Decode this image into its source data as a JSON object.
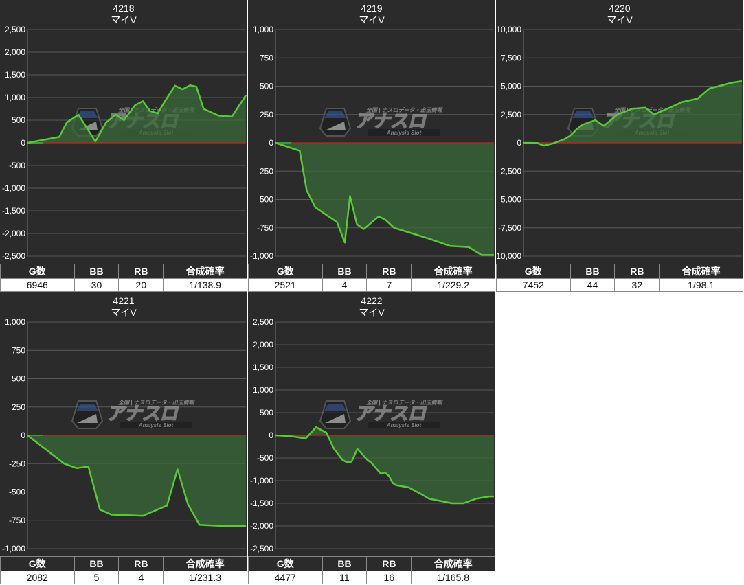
{
  "stats_headers": [
    "G数",
    "BB",
    "RB",
    "合成確率"
  ],
  "watermark": {
    "main": "アナスロ",
    "top": "全国 | ナスロデータ・出玉情報",
    "sub": "Analysis Slot"
  },
  "colors": {
    "background": "#2b2b2b",
    "grid": "#5a5a5a",
    "zero_line": "#cc2222",
    "series": "#55cc33",
    "fill": "#3a6a3a"
  },
  "panels": [
    {
      "id": "4218",
      "title": "4218",
      "subtitle": "マイV",
      "stats": {
        "games": "6946",
        "bb": "30",
        "rb": "20",
        "rate": "1/138.9"
      },
      "chart_data": {
        "type": "line",
        "ylim": [
          -2500,
          2500
        ],
        "yticks": [
          {
            "v": 2500,
            "label": "2,500"
          },
          {
            "v": 2000,
            "label": "2,000"
          },
          {
            "v": 1500,
            "label": "1,500"
          },
          {
            "v": 1000,
            "label": "1,000"
          },
          {
            "v": 500,
            "label": "500"
          },
          {
            "v": 0,
            "label": "0"
          },
          {
            "v": -500,
            "label": "-500"
          },
          {
            "v": -1000,
            "label": "-1,000"
          },
          {
            "v": -1500,
            "label": "-1,500"
          },
          {
            "v": -2000,
            "label": "-2,000"
          },
          {
            "v": -2500,
            "label": "-2,500"
          }
        ],
        "xmax": 6946,
        "x": [
          0,
          1010,
          1250,
          1620,
          2160,
          2500,
          2800,
          3070,
          3420,
          3670,
          3900,
          4140,
          4370,
          4690,
          4930,
          5170,
          5370,
          5600,
          5820,
          6080,
          6500,
          6946
        ],
        "y": [
          0,
          130,
          450,
          620,
          30,
          450,
          620,
          500,
          830,
          920,
          700,
          650,
          920,
          1260,
          1180,
          1270,
          1240,
          750,
          680,
          600,
          580,
          1050
        ]
      }
    },
    {
      "id": "4219",
      "title": "4219",
      "subtitle": "マイV",
      "stats": {
        "games": "2521",
        "bb": "4",
        "rb": "7",
        "rate": "1/229.2"
      },
      "chart_data": {
        "type": "line",
        "ylim": [
          -1000,
          1000
        ],
        "yticks": [
          {
            "v": 1000,
            "label": "1,000"
          },
          {
            "v": 750,
            "label": "750"
          },
          {
            "v": 500,
            "label": "500"
          },
          {
            "v": 250,
            "label": "250"
          },
          {
            "v": 0,
            "label": "0"
          },
          {
            "v": -250,
            "label": "-250"
          },
          {
            "v": -500,
            "label": "-500"
          },
          {
            "v": -750,
            "label": "-750"
          },
          {
            "v": -1000,
            "label": "-1,000"
          }
        ],
        "xmax": 2521,
        "x": [
          0,
          280,
          360,
          460,
          710,
          800,
          860,
          940,
          1020,
          1190,
          1270,
          1370,
          1580,
          1790,
          2010,
          2230,
          2380,
          2521
        ],
        "y": [
          0,
          -70,
          -420,
          -570,
          -700,
          -880,
          -470,
          -720,
          -760,
          -650,
          -680,
          -750,
          -800,
          -850,
          -910,
          -920,
          -990,
          -990
        ]
      }
    },
    {
      "id": "4220",
      "title": "4220",
      "subtitle": "マイV",
      "stats": {
        "games": "7452",
        "bb": "44",
        "rb": "32",
        "rate": "1/98.1"
      },
      "chart_data": {
        "type": "line",
        "ylim": [
          -10000,
          10000
        ],
        "yticks": [
          {
            "v": 10000,
            "label": "10,000"
          },
          {
            "v": 7500,
            "label": "7,500"
          },
          {
            "v": 5000,
            "label": "5,000"
          },
          {
            "v": 2500,
            "label": "2,500"
          },
          {
            "v": 0,
            "label": "0"
          },
          {
            "v": -2500,
            "label": "-2,500"
          },
          {
            "v": -5000,
            "label": "-5,000"
          },
          {
            "v": -7500,
            "label": "-7,500"
          },
          {
            "v": -10000,
            "label": "-10,000"
          }
        ],
        "xmax": 7452,
        "x": [
          0,
          460,
          700,
          1010,
          1380,
          1580,
          1860,
          2020,
          2450,
          2740,
          3210,
          3700,
          4160,
          4450,
          4990,
          5410,
          5940,
          6350,
          6660,
          7100,
          7452
        ],
        "y": [
          0,
          -20,
          -250,
          -50,
          300,
          600,
          1300,
          1600,
          2000,
          1500,
          2500,
          3000,
          3100,
          2500,
          3100,
          3600,
          3900,
          4800,
          5000,
          5300,
          5450
        ]
      }
    },
    {
      "id": "4221",
      "title": "4221",
      "subtitle": "マイV",
      "stats": {
        "games": "2082",
        "bb": "5",
        "rb": "4",
        "rate": "1/231.3"
      },
      "chart_data": {
        "type": "line",
        "ylim": [
          -1000,
          1000
        ],
        "yticks": [
          {
            "v": 1000,
            "label": "1,000"
          },
          {
            "v": 750,
            "label": "750"
          },
          {
            "v": 500,
            "label": "500"
          },
          {
            "v": 250,
            "label": "250"
          },
          {
            "v": 0,
            "label": "0"
          },
          {
            "v": -250,
            "label": "-250"
          },
          {
            "v": -500,
            "label": "-500"
          },
          {
            "v": -750,
            "label": "-750"
          },
          {
            "v": -1000,
            "label": "-1,000"
          }
        ],
        "xmax": 2082,
        "x": [
          0,
          350,
          470,
          580,
          690,
          800,
          1100,
          1330,
          1430,
          1530,
          1640,
          1860,
          2082
        ],
        "y": [
          0,
          -250,
          -290,
          -275,
          -655,
          -700,
          -710,
          -620,
          -300,
          -610,
          -790,
          -800,
          -800
        ]
      }
    },
    {
      "id": "4222",
      "title": "4222",
      "subtitle": "マイV",
      "stats": {
        "games": "4477",
        "bb": "11",
        "rb": "16",
        "rate": "1/165.8"
      },
      "chart_data": {
        "type": "line",
        "ylim": [
          -2500,
          2500
        ],
        "yticks": [
          {
            "v": 2500,
            "label": "2,500"
          },
          {
            "v": 2000,
            "label": "2,000"
          },
          {
            "v": 1500,
            "label": "1,500"
          },
          {
            "v": 1000,
            "label": "1,000"
          },
          {
            "v": 500,
            "label": "500"
          },
          {
            "v": 0,
            "label": "0"
          },
          {
            "v": -500,
            "label": "-500"
          },
          {
            "v": -1000,
            "label": "-1,000"
          },
          {
            "v": -1500,
            "label": "-1,500"
          },
          {
            "v": -2000,
            "label": "-2,000"
          },
          {
            "v": -2500,
            "label": "-2,500"
          }
        ],
        "xmax": 4477,
        "x": [
          0,
          320,
          620,
          830,
          1040,
          1200,
          1380,
          1480,
          1560,
          1680,
          1890,
          1960,
          2160,
          2240,
          2330,
          2400,
          2470,
          2730,
          2990,
          3150,
          3620,
          3850,
          4110,
          4380,
          4477
        ],
        "y": [
          0,
          -20,
          -70,
          180,
          60,
          -300,
          -550,
          -600,
          -580,
          -300,
          -550,
          -600,
          -850,
          -820,
          -900,
          -1050,
          -1100,
          -1150,
          -1300,
          -1400,
          -1500,
          -1500,
          -1400,
          -1350,
          -1350
        ]
      }
    }
  ]
}
